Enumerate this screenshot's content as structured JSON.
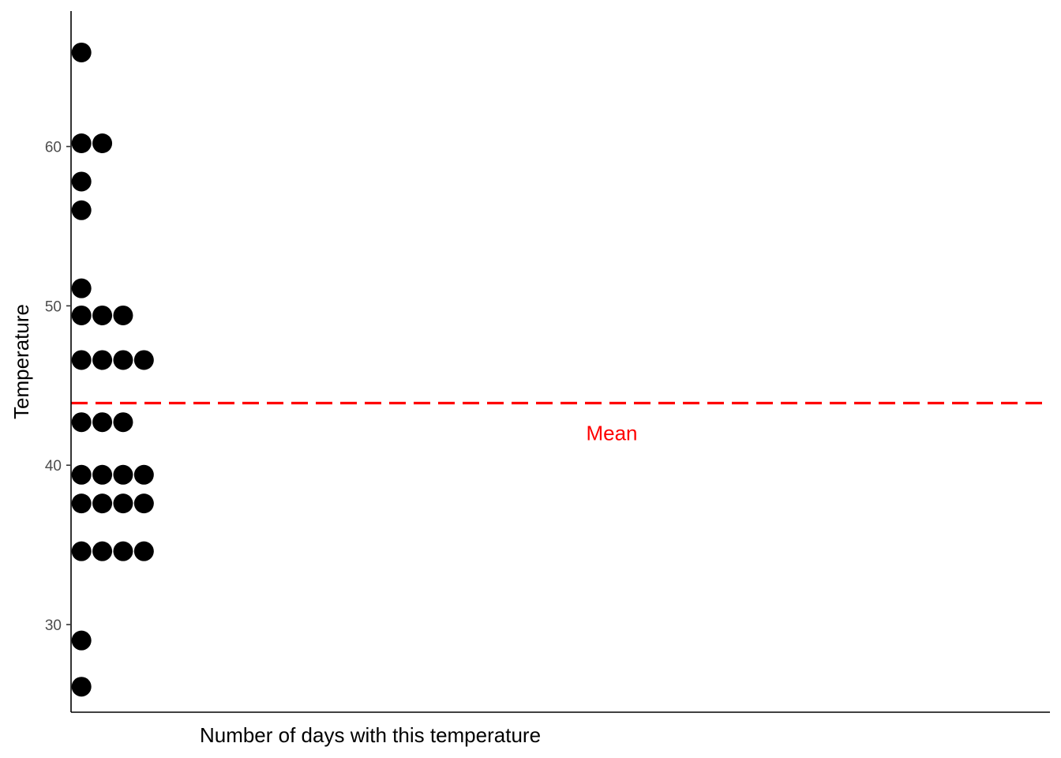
{
  "chart_data": {
    "type": "scatter",
    "subtype": "dotplot",
    "title": "",
    "xlabel": "Number of days with this temperature",
    "ylabel": "Temperature",
    "ylim": [
      24.5,
      68.5
    ],
    "xlim": [
      0,
      47
    ],
    "yticks": [
      30,
      40,
      50,
      60
    ],
    "x_tick_labels_shown": false,
    "grid": false,
    "legend": "none",
    "dot_color": "#000000",
    "bins": [
      {
        "temperature": 26.1,
        "count": 1
      },
      {
        "temperature": 29.0,
        "count": 1
      },
      {
        "temperature": 34.6,
        "count": 4
      },
      {
        "temperature": 37.6,
        "count": 4
      },
      {
        "temperature": 39.4,
        "count": 4
      },
      {
        "temperature": 42.7,
        "count": 3
      },
      {
        "temperature": 46.6,
        "count": 4
      },
      {
        "temperature": 49.4,
        "count": 3
      },
      {
        "temperature": 51.1,
        "count": 1
      },
      {
        "temperature": 56.0,
        "count": 1
      },
      {
        "temperature": 57.8,
        "count": 1
      },
      {
        "temperature": 60.2,
        "count": 2
      },
      {
        "temperature": 65.9,
        "count": 1
      }
    ],
    "mean_line": {
      "value": 43.9,
      "color": "#ff0000",
      "style": "dashed",
      "label": "Mean"
    }
  }
}
